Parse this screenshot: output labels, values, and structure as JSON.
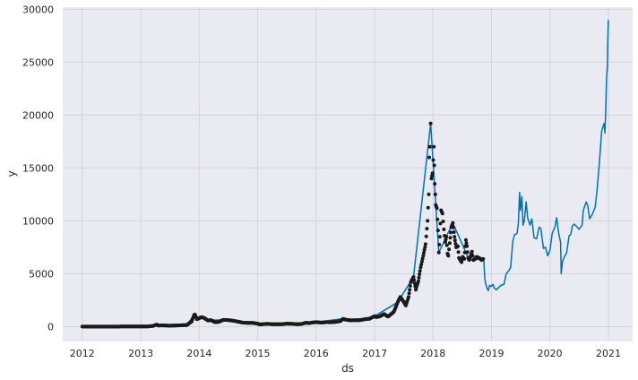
{
  "chart_data": {
    "type": "scatter",
    "xlabel": "ds",
    "ylabel": "y",
    "x_tick_labels": [
      "2012",
      "2013",
      "2014",
      "2015",
      "2016",
      "2017",
      "2018",
      "2019",
      "2020",
      "2021"
    ],
    "y_tick_labels": [
      "0",
      "5000",
      "10000",
      "15000",
      "20000",
      "25000",
      "30000"
    ],
    "xlim": [
      "2011-09-01",
      "2021-06-01"
    ],
    "ylim": [
      -1400,
      30200
    ],
    "grid": true,
    "background": "#eaeaf2",
    "series": [
      {
        "kind": "scatter",
        "color": "#1a1a1a",
        "points": [
          [
            "2012-01-01",
            5
          ],
          [
            "2012-03-01",
            5
          ],
          [
            "2012-05-01",
            5
          ],
          [
            "2012-07-01",
            7
          ],
          [
            "2012-09-01",
            11
          ],
          [
            "2012-11-01",
            11
          ],
          [
            "2013-01-01",
            13
          ],
          [
            "2013-02-15",
            25
          ],
          [
            "2013-03-20",
            70
          ],
          [
            "2013-04-10",
            200
          ],
          [
            "2013-04-20",
            110
          ],
          [
            "2013-05-15",
            120
          ],
          [
            "2013-07-01",
            90
          ],
          [
            "2013-09-01",
            125
          ],
          [
            "2013-10-15",
            150
          ],
          [
            "2013-11-15",
            500
          ],
          [
            "2013-11-30",
            1100
          ],
          [
            "2013-12-05",
            1150
          ],
          [
            "2013-12-18",
            700
          ],
          [
            "2014-01-01",
            800
          ],
          [
            "2014-01-15",
            900
          ],
          [
            "2014-02-01",
            820
          ],
          [
            "2014-02-25",
            580
          ],
          [
            "2014-03-15",
            620
          ],
          [
            "2014-04-10",
            420
          ],
          [
            "2014-05-01",
            440
          ],
          [
            "2014-06-01",
            640
          ],
          [
            "2014-07-01",
            620
          ],
          [
            "2014-08-01",
            560
          ],
          [
            "2014-09-01",
            470
          ],
          [
            "2014-10-01",
            380
          ],
          [
            "2014-11-01",
            360
          ],
          [
            "2014-12-01",
            350
          ],
          [
            "2015-01-01",
            290
          ],
          [
            "2015-01-15",
            200
          ],
          [
            "2015-02-01",
            230
          ],
          [
            "2015-03-01",
            265
          ],
          [
            "2015-04-01",
            235
          ],
          [
            "2015-05-01",
            237
          ],
          [
            "2015-06-01",
            225
          ],
          [
            "2015-07-01",
            285
          ],
          [
            "2015-08-01",
            270
          ],
          [
            "2015-09-01",
            230
          ],
          [
            "2015-10-01",
            245
          ],
          [
            "2015-11-01",
            380
          ],
          [
            "2015-11-15",
            330
          ],
          [
            "2015-12-01",
            370
          ],
          [
            "2016-01-01",
            430
          ],
          [
            "2016-02-01",
            380
          ],
          [
            "2016-03-01",
            420
          ],
          [
            "2016-04-01",
            415
          ],
          [
            "2016-05-01",
            450
          ],
          [
            "2016-06-01",
            530
          ],
          [
            "2016-06-18",
            740
          ],
          [
            "2016-07-01",
            670
          ],
          [
            "2016-08-01",
            600
          ],
          [
            "2016-09-01",
            605
          ],
          [
            "2016-10-01",
            615
          ],
          [
            "2016-11-01",
            700
          ],
          [
            "2016-12-01",
            750
          ],
          [
            "2017-01-01",
            1000
          ],
          [
            "2017-01-10",
            900
          ],
          [
            "2017-02-01",
            970
          ],
          [
            "2017-03-01",
            1190
          ],
          [
            "2017-03-25",
            950
          ],
          [
            "2017-04-15",
            1200
          ],
          [
            "2017-05-01",
            1400
          ],
          [
            "2017-05-25",
            2300
          ],
          [
            "2017-06-10",
            2800
          ],
          [
            "2017-06-25",
            2500
          ],
          [
            "2017-07-15",
            2000
          ],
          [
            "2017-08-01",
            2800
          ],
          [
            "2017-08-15",
            4200
          ],
          [
            "2017-09-01",
            4700
          ],
          [
            "2017-09-15",
            3500
          ],
          [
            "2017-10-01",
            4300
          ],
          [
            "2017-10-15",
            5600
          ],
          [
            "2017-11-01",
            6700
          ],
          [
            "2017-11-15",
            7800
          ],
          [
            "2017-11-28",
            10000
          ],
          [
            "2017-12-05",
            12500
          ],
          [
            "2017-12-08",
            16000
          ],
          [
            "2017-12-12",
            17000
          ],
          [
            "2017-12-17",
            19200
          ],
          [
            "2017-12-22",
            14000
          ],
          [
            "2017-12-29",
            14500
          ],
          [
            "2018-01-06",
            17000
          ],
          [
            "2018-01-12",
            13500
          ],
          [
            "2018-01-18",
            11500
          ],
          [
            "2018-01-25",
            11200
          ],
          [
            "2018-02-01",
            9100
          ],
          [
            "2018-02-06",
            7000
          ],
          [
            "2018-02-12",
            8500
          ],
          [
            "2018-02-20",
            11000
          ],
          [
            "2018-03-01",
            10700
          ],
          [
            "2018-03-10",
            9200
          ],
          [
            "2018-03-18",
            8000
          ],
          [
            "2018-03-25",
            8500
          ],
          [
            "2018-04-01",
            6900
          ],
          [
            "2018-04-07",
            6700
          ],
          [
            "2018-04-15",
            7900
          ],
          [
            "2018-04-25",
            9400
          ],
          [
            "2018-05-05",
            9800
          ],
          [
            "2018-05-15",
            8500
          ],
          [
            "2018-05-25",
            7500
          ],
          [
            "2018-06-05",
            7600
          ],
          [
            "2018-06-12",
            6500
          ],
          [
            "2018-06-20",
            6300
          ],
          [
            "2018-06-28",
            6100
          ],
          [
            "2018-07-05",
            6600
          ],
          [
            "2018-07-15",
            6400
          ],
          [
            "2018-07-25",
            8200
          ],
          [
            "2018-08-01",
            7600
          ],
          [
            "2018-08-08",
            6500
          ],
          [
            "2018-08-15",
            6300
          ],
          [
            "2018-08-25",
            6700
          ],
          [
            "2018-09-01",
            7100
          ],
          [
            "2018-09-10",
            6300
          ],
          [
            "2018-09-20",
            6400
          ],
          [
            "2018-10-01",
            6600
          ],
          [
            "2018-10-15",
            6500
          ],
          [
            "2018-10-31",
            6300
          ],
          [
            "2018-11-10",
            6400
          ]
        ]
      },
      {
        "kind": "line",
        "color": "#0072b2",
        "points": [
          [
            "2012-01-01",
            0
          ],
          [
            "2013-01-01",
            13
          ],
          [
            "2013-04-10",
            200
          ],
          [
            "2013-07-01",
            90
          ],
          [
            "2013-10-15",
            150
          ],
          [
            "2013-11-30",
            1100
          ],
          [
            "2013-12-18",
            700
          ],
          [
            "2014-01-15",
            900
          ],
          [
            "2014-03-15",
            620
          ],
          [
            "2014-06-01",
            640
          ],
          [
            "2014-09-01",
            470
          ],
          [
            "2015-01-15",
            200
          ],
          [
            "2015-07-01",
            285
          ],
          [
            "2016-01-01",
            430
          ],
          [
            "2016-06-18",
            740
          ],
          [
            "2016-10-01",
            615
          ],
          [
            "2017-01-01",
            1000
          ],
          [
            "2017-05-25",
            2300
          ],
          [
            "2017-09-01",
            4700
          ],
          [
            "2017-12-17",
            19200
          ],
          [
            "2018-02-06",
            7000
          ],
          [
            "2018-05-05",
            9800
          ],
          [
            "2018-08-15",
            6300
          ],
          [
            "2018-11-10",
            6400
          ],
          [
            "2018-11-14",
            6300
          ],
          [
            "2018-11-20",
            4600
          ],
          [
            "2018-11-25",
            4100
          ],
          [
            "2018-12-05",
            3600
          ],
          [
            "2018-12-12",
            3400
          ],
          [
            "2018-12-20",
            3900
          ],
          [
            "2018-12-30",
            3800
          ],
          [
            "2019-01-10",
            4000
          ],
          [
            "2019-01-20",
            3600
          ],
          [
            "2019-02-01",
            3500
          ],
          [
            "2019-02-15",
            3700
          ],
          [
            "2019-03-01",
            3900
          ],
          [
            "2019-03-20",
            4000
          ],
          [
            "2019-04-03",
            5000
          ],
          [
            "2019-04-20",
            5300
          ],
          [
            "2019-05-01",
            5600
          ],
          [
            "2019-05-14",
            8000
          ],
          [
            "2019-05-25",
            8700
          ],
          [
            "2019-06-10",
            8800
          ],
          [
            "2019-06-18",
            9800
          ],
          [
            "2019-06-26",
            12700
          ],
          [
            "2019-07-01",
            11000
          ],
          [
            "2019-07-10",
            12300
          ],
          [
            "2019-07-17",
            9600
          ],
          [
            "2019-07-25",
            10000
          ],
          [
            "2019-08-06",
            11800
          ],
          [
            "2019-08-15",
            10300
          ],
          [
            "2019-08-30",
            9600
          ],
          [
            "2019-09-10",
            10200
          ],
          [
            "2019-09-24",
            8400
          ],
          [
            "2019-10-10",
            8300
          ],
          [
            "2019-10-26",
            9400
          ],
          [
            "2019-11-05",
            9300
          ],
          [
            "2019-11-22",
            7400
          ],
          [
            "2019-12-05",
            7500
          ],
          [
            "2019-12-18",
            6700
          ],
          [
            "2020-01-01",
            7200
          ],
          [
            "2020-01-15",
            8800
          ],
          [
            "2020-02-01",
            9400
          ],
          [
            "2020-02-12",
            10300
          ],
          [
            "2020-02-25",
            8800
          ],
          [
            "2020-03-08",
            8000
          ],
          [
            "2020-03-12",
            5000
          ],
          [
            "2020-03-20",
            6200
          ],
          [
            "2020-04-01",
            6600
          ],
          [
            "2020-04-15",
            7000
          ],
          [
            "2020-04-30",
            8600
          ],
          [
            "2020-05-10",
            8700
          ],
          [
            "2020-05-20",
            9500
          ],
          [
            "2020-06-01",
            9700
          ],
          [
            "2020-06-15",
            9500
          ],
          [
            "2020-07-01",
            9200
          ],
          [
            "2020-07-20",
            9600
          ],
          [
            "2020-07-28",
            11000
          ],
          [
            "2020-08-15",
            11800
          ],
          [
            "2020-08-25",
            11400
          ],
          [
            "2020-09-05",
            10200
          ],
          [
            "2020-09-25",
            10700
          ],
          [
            "2020-10-10",
            11300
          ],
          [
            "2020-10-21",
            12800
          ],
          [
            "2020-11-05",
            15500
          ],
          [
            "2020-11-20",
            18500
          ],
          [
            "2020-11-30",
            19000
          ],
          [
            "2020-12-05",
            19200
          ],
          [
            "2020-12-10",
            18300
          ],
          [
            "2020-12-16",
            21000
          ],
          [
            "2020-12-20",
            23500
          ],
          [
            "2020-12-25",
            24500
          ],
          [
            "2020-12-28",
            27000
          ],
          [
            "2020-12-31",
            29000
          ]
        ]
      }
    ]
  }
}
